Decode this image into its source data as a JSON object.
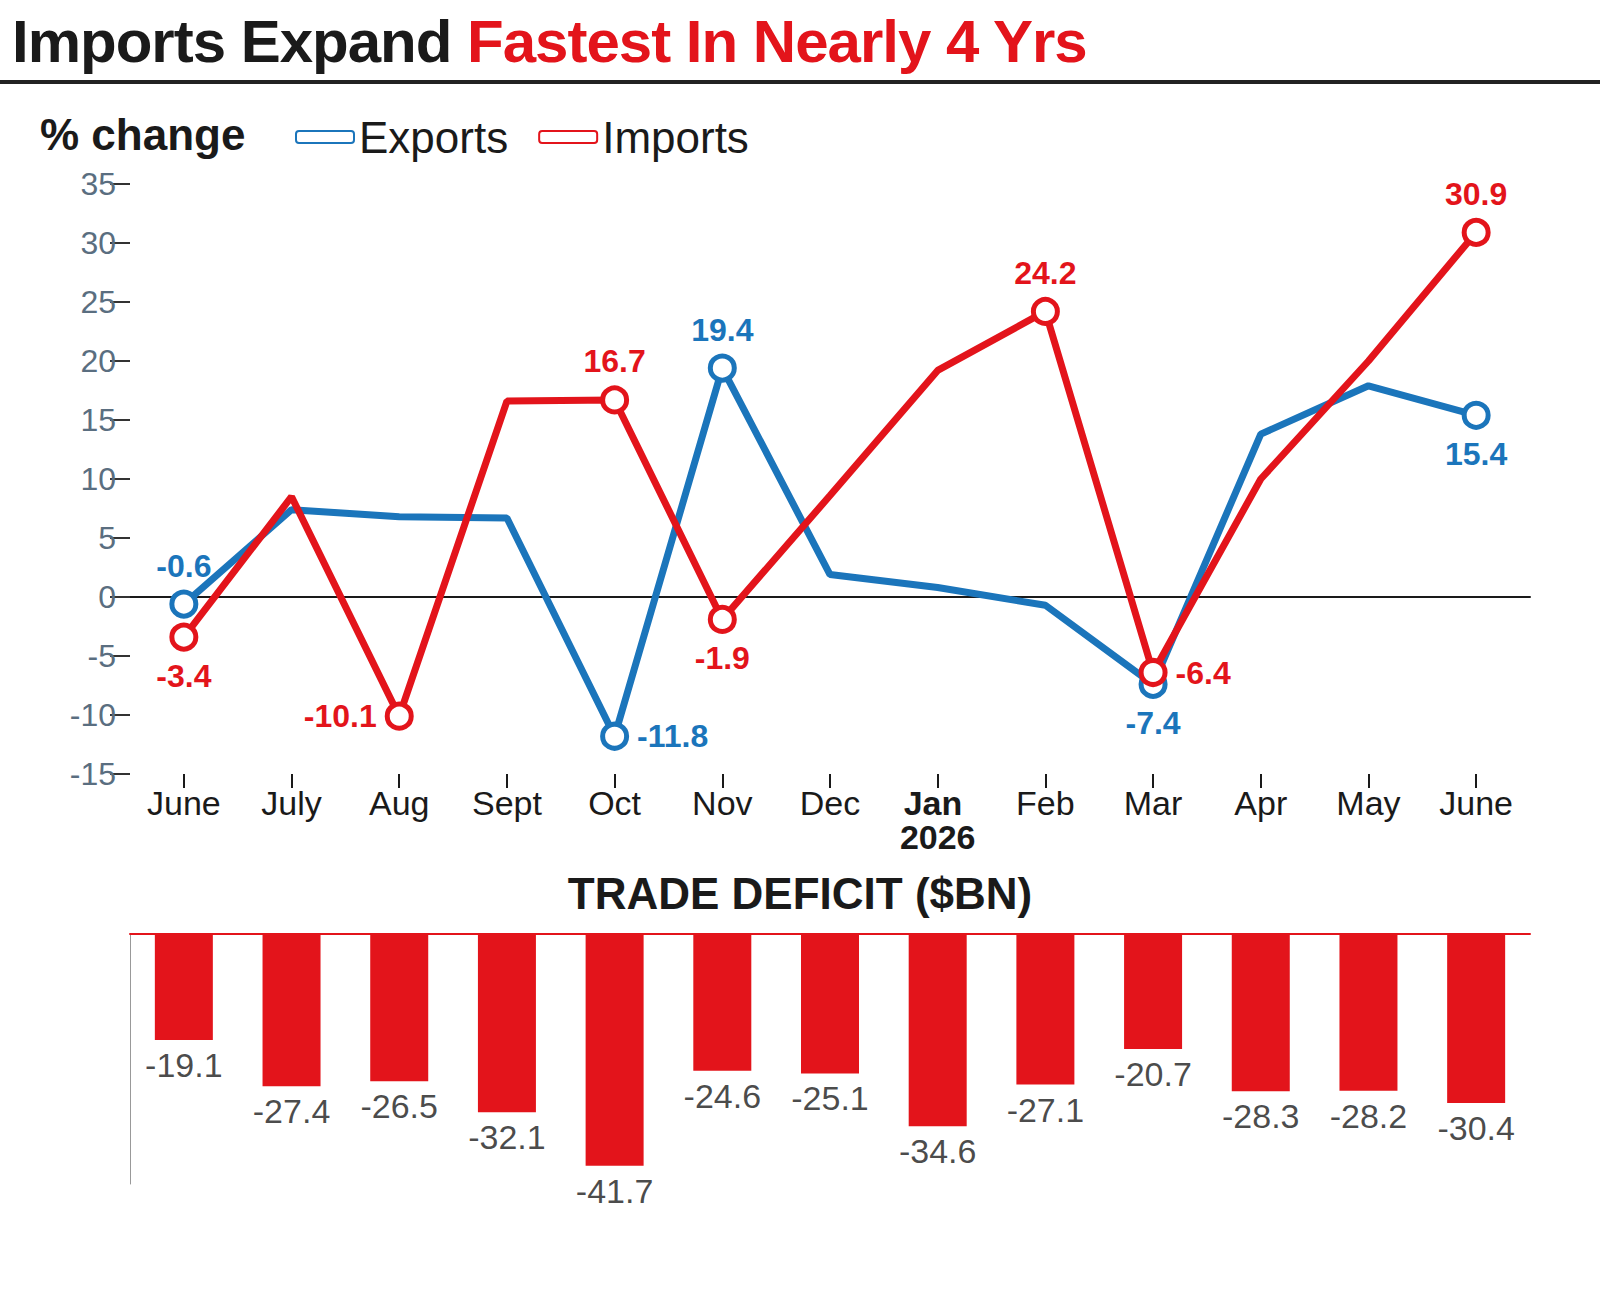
{
  "chart_data": [
    {
      "type": "line",
      "title": "Imports Expand Fastest In Nearly 4 Yrs",
      "y_label": "% change",
      "categories": [
        "June",
        "July",
        "Aug",
        "Sept",
        "Oct",
        "Nov",
        "Dec",
        "Jan 2026",
        "Feb",
        "Mar",
        "Apr",
        "May",
        "June"
      ],
      "series": [
        {
          "name": "Exports",
          "color": "#1b75bb",
          "values": [
            -0.6,
            7.4,
            6.8,
            6.7,
            -11.8,
            19.4,
            1.9,
            0.8,
            -0.7,
            -7.4,
            13.8,
            17.9,
            15.4
          ],
          "value_labels": [
            "-0.6",
            null,
            null,
            null,
            "-11.8",
            "19.4",
            null,
            null,
            null,
            "-7.4",
            null,
            null,
            "15.4"
          ]
        },
        {
          "name": "Imports",
          "color": "#e3141b",
          "values": [
            -3.4,
            8.5,
            -10.1,
            16.6,
            16.7,
            -1.9,
            8.6,
            19.2,
            24.2,
            -6.4,
            10.0,
            20.0,
            30.9
          ],
          "value_labels": [
            "-3.4",
            null,
            "-10.1",
            null,
            "16.7",
            "-1.9",
            null,
            null,
            "24.2",
            "-6.4",
            null,
            null,
            "30.9"
          ]
        }
      ],
      "ylim": [
        -15,
        35
      ],
      "yticks": [
        -15,
        -10,
        -5,
        0,
        5,
        10,
        15,
        20,
        25,
        30,
        35
      ],
      "legend": "top-left",
      "marker": "circle",
      "data_labels": true
    },
    {
      "type": "bar",
      "title": "TRADE DEFICIT ($BN)",
      "categories": [
        "June",
        "July",
        "Aug",
        "Sept",
        "Oct",
        "Nov",
        "Dec",
        "Jan 2026",
        "Feb",
        "Mar",
        "Apr",
        "May",
        "June"
      ],
      "values": [
        -19.1,
        -27.4,
        -26.5,
        -32.1,
        -41.7,
        -24.6,
        -25.1,
        -34.6,
        -27.1,
        -20.7,
        -28.3,
        -28.2,
        -30.4
      ],
      "color": "#e3141b",
      "ylim": [
        -45,
        0
      ],
      "data_labels": true,
      "tick_labels": false
    }
  ]
}
